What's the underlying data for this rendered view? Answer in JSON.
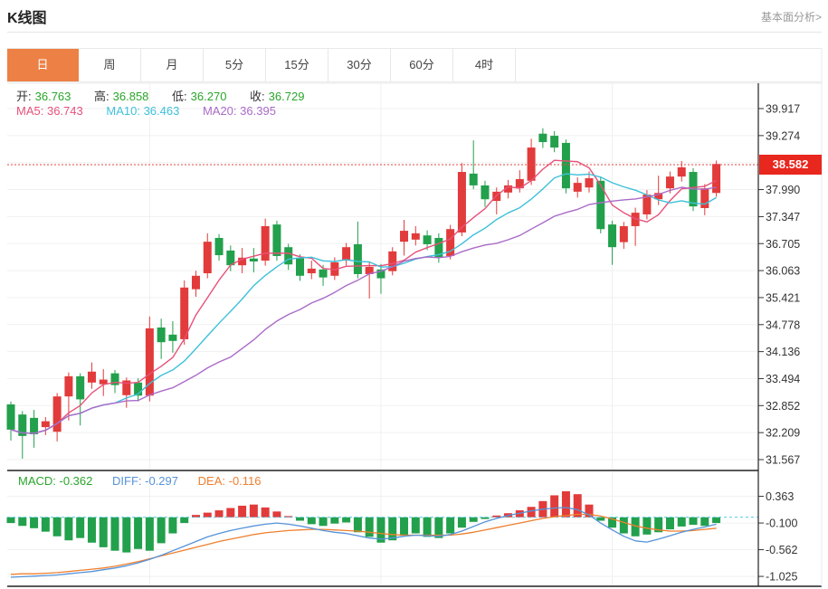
{
  "header": {
    "title": "K线图",
    "link": "基本面分析>"
  },
  "tabs": {
    "items": [
      {
        "label": "日",
        "selected": true
      },
      {
        "label": "周",
        "selected": false
      },
      {
        "label": "月",
        "selected": false
      },
      {
        "label": "5分",
        "selected": false
      },
      {
        "label": "15分",
        "selected": false
      },
      {
        "label": "30分",
        "selected": false
      },
      {
        "label": "60分",
        "selected": false
      },
      {
        "label": "4时",
        "selected": false
      }
    ]
  },
  "legend": {
    "open_label": "开:",
    "open": "36.763",
    "high_label": "高:",
    "high": "36.858",
    "low_label": "低:",
    "low": "36.270",
    "close_label": "收:",
    "close": "36.729",
    "ma5_label": "MA5:",
    "ma5": "36.743",
    "ma10_label": "MA10:",
    "ma10": "36.463",
    "ma20_label": "MA20:",
    "ma20": "36.395"
  },
  "macd_legend": {
    "macd_label": "MACD:",
    "macd": "-0.362",
    "diff_label": "DIFF:",
    "diff": "-0.297",
    "dea_label": "DEA:",
    "dea": "-0.116"
  },
  "colors": {
    "up": "#e23b3b",
    "down": "#22a04c",
    "value_green": "#2aa52a",
    "ma5": "#e8517a",
    "ma10": "#3ec0da",
    "ma20": "#aa6bc8",
    "diff": "#5593d8",
    "dea": "#ef7f2e",
    "tab_active": "#ed8145",
    "badge_bg": "#e8271e",
    "price_line": "#e64545",
    "grid": "#f1f1f1",
    "axis": "#222"
  },
  "chart_data": {
    "type": "candlestick+macd",
    "title": "K线图 (daily K-line with MA5/MA10/MA20 and MACD)",
    "price_axis": {
      "labels": [
        "39.917",
        "39.274",
        "37.990",
        "37.347",
        "36.705",
        "36.063",
        "35.421",
        "34.778",
        "34.136",
        "33.494",
        "32.852",
        "32.209",
        "31.567"
      ],
      "values": [
        39.917,
        39.274,
        37.99,
        37.347,
        36.705,
        36.063,
        35.421,
        34.778,
        34.136,
        33.494,
        32.852,
        32.209,
        31.567
      ],
      "hidden_grid": 38.632,
      "range": [
        31.567,
        39.917
      ],
      "current_price": 38.582,
      "current_price_label": "38.582"
    },
    "macd_axis": {
      "labels": [
        "0.363",
        "-0.100",
        "-0.562",
        "-1.025"
      ],
      "values": [
        0.363,
        -0.1,
        -0.562,
        -1.025
      ]
    },
    "ma_periods": [
      5,
      10,
      20
    ],
    "candles": [
      [
        32.88,
        32.28,
        32.95,
        32.02
      ],
      [
        32.64,
        32.13,
        32.72,
        31.59
      ],
      [
        32.56,
        32.17,
        32.75,
        31.85
      ],
      [
        32.34,
        32.48,
        32.58,
        32.15
      ],
      [
        32.23,
        33.07,
        33.15,
        32.0
      ],
      [
        33.07,
        33.55,
        33.64,
        32.5
      ],
      [
        33.55,
        33.0,
        33.62,
        32.38
      ],
      [
        33.4,
        33.66,
        33.88,
        33.25
      ],
      [
        33.36,
        33.47,
        33.72,
        33.08
      ],
      [
        33.62,
        33.34,
        33.7,
        33.15
      ],
      [
        33.1,
        33.45,
        33.52,
        32.8
      ],
      [
        33.4,
        33.09,
        33.5,
        32.95
      ],
      [
        33.09,
        34.69,
        34.97,
        32.95
      ],
      [
        34.71,
        34.36,
        34.92,
        33.96
      ],
      [
        34.54,
        34.39,
        34.86,
        34.11
      ],
      [
        34.43,
        35.66,
        35.83,
        34.3
      ],
      [
        35.62,
        35.94,
        36.06,
        35.44
      ],
      [
        36.0,
        36.75,
        36.95,
        35.88
      ],
      [
        36.84,
        36.43,
        36.93,
        36.3
      ],
      [
        36.54,
        36.19,
        36.66,
        36.05
      ],
      [
        36.19,
        36.37,
        36.6,
        36.0
      ],
      [
        36.35,
        36.28,
        36.6,
        36.02
      ],
      [
        36.3,
        37.12,
        37.3,
        36.18
      ],
      [
        37.16,
        36.41,
        37.25,
        36.3
      ],
      [
        36.62,
        36.21,
        36.7,
        36.08
      ],
      [
        36.37,
        35.94,
        36.45,
        35.82
      ],
      [
        36.0,
        36.11,
        36.3,
        35.86
      ],
      [
        36.09,
        35.9,
        36.2,
        35.7
      ],
      [
        35.94,
        36.26,
        36.38,
        35.84
      ],
      [
        36.3,
        36.62,
        36.72,
        36.18
      ],
      [
        36.69,
        35.98,
        37.23,
        35.88
      ],
      [
        35.98,
        36.15,
        36.28,
        35.4
      ],
      [
        36.09,
        35.88,
        36.22,
        35.51
      ],
      [
        36.05,
        36.52,
        36.62,
        35.95
      ],
      [
        36.75,
        37.01,
        37.27,
        36.42
      ],
      [
        36.8,
        36.95,
        37.12,
        36.66
      ],
      [
        36.9,
        36.69,
        37.02,
        36.55
      ],
      [
        36.84,
        36.37,
        36.95,
        36.25
      ],
      [
        36.41,
        37.05,
        37.15,
        36.33
      ],
      [
        36.97,
        38.41,
        38.62,
        36.88
      ],
      [
        38.37,
        38.09,
        39.16,
        38.0
      ],
      [
        38.09,
        37.76,
        38.2,
        37.58
      ],
      [
        37.72,
        37.94,
        38.04,
        37.4
      ],
      [
        37.92,
        38.09,
        38.22,
        37.78
      ],
      [
        38.02,
        38.24,
        38.45,
        37.92
      ],
      [
        38.2,
        38.99,
        39.2,
        38.1
      ],
      [
        39.32,
        39.12,
        39.45,
        38.98
      ],
      [
        39.27,
        38.99,
        39.38,
        38.88
      ],
      [
        39.1,
        38.02,
        39.18,
        37.9
      ],
      [
        37.94,
        38.15,
        38.28,
        37.8
      ],
      [
        38.04,
        38.26,
        38.42,
        37.92
      ],
      [
        38.2,
        37.05,
        38.3,
        36.95
      ],
      [
        37.16,
        36.62,
        37.25,
        36.2
      ],
      [
        36.74,
        37.12,
        37.22,
        36.58
      ],
      [
        37.12,
        37.44,
        37.56,
        36.65
      ],
      [
        37.4,
        37.87,
        37.98,
        37.28
      ],
      [
        37.76,
        37.91,
        38.32,
        37.62
      ],
      [
        38.02,
        38.3,
        38.42,
        37.9
      ],
      [
        38.3,
        38.52,
        38.67,
        38.18
      ],
      [
        38.41,
        37.59,
        38.5,
        37.48
      ],
      [
        37.55,
        38.02,
        38.12,
        37.38
      ],
      [
        37.91,
        38.6,
        38.68,
        37.82
      ]
    ],
    "macd": {
      "hist": [
        -0.1,
        -0.15,
        -0.19,
        -0.25,
        -0.33,
        -0.4,
        -0.36,
        -0.44,
        -0.52,
        -0.58,
        -0.61,
        -0.55,
        -0.58,
        -0.45,
        -0.28,
        -0.1,
        0.04,
        0.08,
        0.12,
        0.16,
        0.2,
        0.22,
        0.17,
        0.1,
        0.02,
        -0.06,
        -0.12,
        -0.15,
        -0.11,
        -0.09,
        -0.26,
        -0.34,
        -0.44,
        -0.4,
        -0.32,
        -0.28,
        -0.34,
        -0.36,
        -0.28,
        -0.18,
        -0.08,
        -0.03,
        0.03,
        0.07,
        0.12,
        0.18,
        0.28,
        0.38,
        0.45,
        0.4,
        0.22,
        -0.06,
        -0.18,
        -0.28,
        -0.33,
        -0.3,
        -0.26,
        -0.21,
        -0.16,
        -0.13,
        -0.15,
        -0.1
      ],
      "diff": [
        -1.04,
        -1.03,
        -1.02,
        -1.01,
        -1.0,
        -0.98,
        -0.96,
        -0.94,
        -0.91,
        -0.88,
        -0.84,
        -0.79,
        -0.73,
        -0.66,
        -0.58,
        -0.5,
        -0.42,
        -0.34,
        -0.28,
        -0.23,
        -0.19,
        -0.15,
        -0.12,
        -0.1,
        -0.12,
        -0.15,
        -0.19,
        -0.23,
        -0.26,
        -0.28,
        -0.32,
        -0.36,
        -0.38,
        -0.36,
        -0.33,
        -0.31,
        -0.32,
        -0.33,
        -0.3,
        -0.24,
        -0.16,
        -0.08,
        -0.02,
        0.03,
        0.07,
        0.11,
        0.14,
        0.16,
        0.17,
        0.13,
        0.04,
        -0.1,
        -0.22,
        -0.33,
        -0.41,
        -0.43,
        -0.38,
        -0.32,
        -0.26,
        -0.21,
        -0.17,
        -0.12
      ],
      "dea": [
        -0.99,
        -0.98,
        -0.98,
        -0.97,
        -0.96,
        -0.94,
        -0.92,
        -0.9,
        -0.88,
        -0.85,
        -0.81,
        -0.77,
        -0.72,
        -0.67,
        -0.62,
        -0.57,
        -0.52,
        -0.47,
        -0.42,
        -0.38,
        -0.34,
        -0.3,
        -0.27,
        -0.25,
        -0.23,
        -0.22,
        -0.21,
        -0.21,
        -0.22,
        -0.23,
        -0.24,
        -0.26,
        -0.28,
        -0.3,
        -0.31,
        -0.31,
        -0.31,
        -0.31,
        -0.31,
        -0.29,
        -0.26,
        -0.22,
        -0.18,
        -0.14,
        -0.1,
        -0.06,
        -0.02,
        0.01,
        0.03,
        0.05,
        0.05,
        0.02,
        -0.03,
        -0.09,
        -0.15,
        -0.19,
        -0.22,
        -0.24,
        -0.24,
        -0.23,
        -0.21,
        -0.19
      ]
    }
  }
}
